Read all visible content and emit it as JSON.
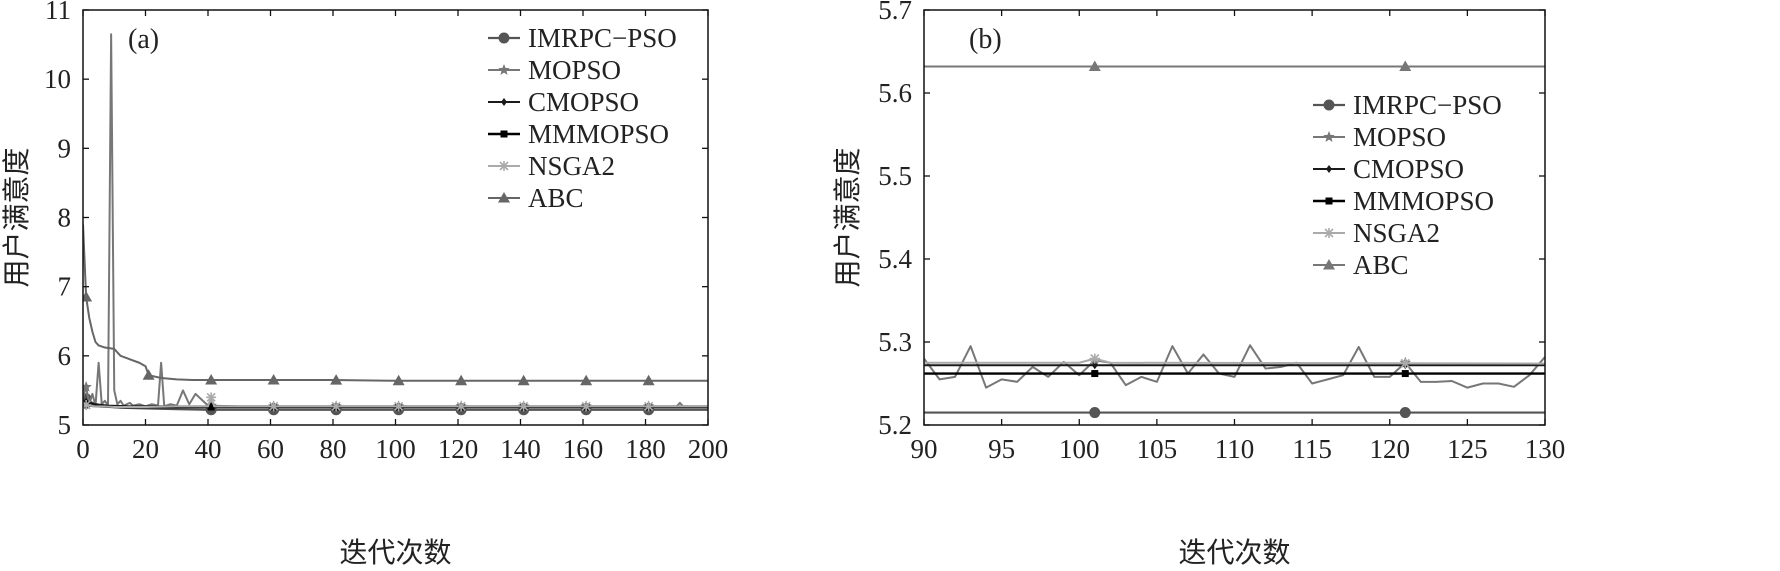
{
  "chart_data": [
    {
      "type": "line",
      "panel_label": "(a)",
      "xlabel": "迭代次数",
      "ylabel": "用户满意度",
      "xlim": [
        0,
        200
      ],
      "ylim": [
        5,
        11
      ],
      "xticks": [
        "0",
        "20",
        "40",
        "60",
        "80",
        "100",
        "120",
        "140",
        "160",
        "180",
        "200"
      ],
      "yticks": [
        "5",
        "6",
        "7",
        "8",
        "9",
        "10",
        "11"
      ],
      "legend_position": "top-right",
      "series": [
        {
          "name": "IMRPC−PSO",
          "color": "#555555",
          "marker": "circle",
          "width": 2.2,
          "x": [
            0,
            1,
            2,
            3,
            5,
            8,
            12,
            20,
            30,
            40,
            60,
            80,
            100,
            120,
            140,
            160,
            180,
            200
          ],
          "y": [
            5.4,
            5.38,
            5.35,
            5.32,
            5.29,
            5.27,
            5.25,
            5.24,
            5.23,
            5.22,
            5.22,
            5.22,
            5.22,
            5.22,
            5.22,
            5.22,
            5.22,
            5.22
          ],
          "marker_x": [
            1,
            41,
            61,
            81,
            101,
            121,
            141,
            161,
            181
          ]
        },
        {
          "name": "MOPSO",
          "color": "#777777",
          "marker": "star",
          "width": 2,
          "x": [
            0,
            1,
            2,
            3,
            4,
            5,
            6,
            7,
            8,
            9,
            10,
            11,
            12,
            13,
            14,
            15,
            16,
            18,
            20,
            22,
            24,
            25,
            26,
            28,
            30,
            32,
            34,
            36,
            40,
            50,
            60,
            80,
            100,
            120,
            140,
            160,
            180,
            190,
            191,
            192,
            200
          ],
          "y": [
            5.4,
            5.55,
            5.3,
            5.45,
            5.28,
            5.9,
            5.3,
            5.35,
            5.28,
            10.65,
            5.5,
            5.3,
            5.35,
            5.28,
            5.3,
            5.32,
            5.28,
            5.3,
            5.27,
            5.3,
            5.28,
            5.9,
            5.27,
            5.3,
            5.28,
            5.5,
            5.3,
            5.45,
            5.28,
            5.27,
            5.27,
            5.27,
            5.27,
            5.27,
            5.27,
            5.27,
            5.27,
            5.27,
            5.32,
            5.27,
            5.27
          ],
          "marker_x": [
            1,
            41,
            61,
            81,
            101,
            121,
            141,
            161,
            181
          ]
        },
        {
          "name": "CMOPSO",
          "color": "#1a1a1a",
          "marker": "diamond",
          "width": 2,
          "x": [
            0,
            2,
            4,
            8,
            15,
            25,
            40,
            60,
            80,
            100,
            120,
            140,
            160,
            180,
            200
          ],
          "y": [
            5.35,
            5.32,
            5.3,
            5.28,
            5.27,
            5.27,
            5.27,
            5.27,
            5.27,
            5.27,
            5.27,
            5.27,
            5.27,
            5.27,
            5.27
          ],
          "marker_x": [
            1,
            41,
            61,
            81,
            101,
            121,
            141,
            161,
            181
          ]
        },
        {
          "name": "MMMOPSO",
          "color": "#000000",
          "marker": "square",
          "width": 2.4,
          "x": [
            0,
            2,
            5,
            10,
            20,
            40,
            60,
            80,
            100,
            120,
            140,
            160,
            180,
            200
          ],
          "y": [
            5.3,
            5.28,
            5.27,
            5.26,
            5.26,
            5.26,
            5.26,
            5.26,
            5.26,
            5.26,
            5.26,
            5.26,
            5.26,
            5.26
          ],
          "marker_x": [
            1,
            41,
            61,
            81,
            101,
            121,
            141,
            161,
            181
          ]
        },
        {
          "name": "NSGA2",
          "color": "#aaaaaa",
          "marker": "asterisk",
          "width": 2,
          "x": [
            0,
            2,
            4,
            6,
            10,
            20,
            30,
            40,
            41,
            42,
            50,
            60,
            80,
            100,
            120,
            140,
            160,
            180,
            200
          ],
          "y": [
            5.3,
            5.28,
            5.27,
            5.27,
            5.26,
            5.26,
            5.27,
            5.27,
            5.4,
            5.27,
            5.27,
            5.27,
            5.27,
            5.27,
            5.27,
            5.27,
            5.27,
            5.27,
            5.27
          ],
          "marker_x": [
            1,
            41,
            61,
            81,
            101,
            121,
            141,
            161,
            181
          ]
        },
        {
          "name": "ABC",
          "color": "#666666",
          "marker": "triangle",
          "width": 2,
          "x": [
            0,
            1,
            2,
            3,
            4,
            5,
            7,
            10,
            12,
            15,
            18,
            20,
            21,
            25,
            30,
            35,
            40,
            60,
            80,
            100,
            120,
            140,
            160,
            180,
            200
          ],
          "y": [
            7.9,
            6.85,
            6.55,
            6.35,
            6.2,
            6.15,
            6.12,
            6.1,
            6.0,
            5.95,
            5.9,
            5.85,
            5.72,
            5.68,
            5.66,
            5.65,
            5.65,
            5.65,
            5.65,
            5.64,
            5.64,
            5.64,
            5.64,
            5.64,
            5.64
          ],
          "marker_x": [
            1,
            21,
            41,
            61,
            81,
            101,
            121,
            141,
            161,
            181
          ]
        }
      ]
    },
    {
      "type": "line",
      "panel_label": "(b)",
      "xlabel": "迭代次数",
      "ylabel": "用户满意度",
      "xlim": [
        90,
        130
      ],
      "ylim": [
        5.2,
        5.7
      ],
      "xticks": [
        "90",
        "95",
        "100",
        "105",
        "110",
        "115",
        "120",
        "125",
        "130"
      ],
      "yticks": [
        "5.2",
        "5.3",
        "5.4",
        "5.5",
        "5.6",
        "5.7"
      ],
      "legend_position": "middle-right",
      "series": [
        {
          "name": "IMRPC−PSO",
          "color": "#555555",
          "marker": "circle",
          "width": 2.2,
          "x": [
            90,
            130
          ],
          "y": [
            5.215,
            5.215
          ],
          "marker_x": [
            101,
            121
          ]
        },
        {
          "name": "MOPSO",
          "color": "#777777",
          "marker": "star",
          "width": 2,
          "x": [
            90,
            91,
            92,
            93,
            94,
            95,
            96,
            97,
            98,
            99,
            100,
            101,
            102,
            103,
            104,
            105,
            106,
            107,
            108,
            109,
            110,
            111,
            112,
            113,
            114,
            115,
            116,
            117,
            118,
            119,
            120,
            121,
            122,
            123,
            124,
            125,
            126,
            127,
            128,
            129,
            130
          ],
          "y": [
            5.28,
            5.255,
            5.258,
            5.295,
            5.245,
            5.255,
            5.252,
            5.27,
            5.258,
            5.276,
            5.26,
            5.278,
            5.275,
            5.248,
            5.258,
            5.252,
            5.295,
            5.262,
            5.285,
            5.262,
            5.258,
            5.296,
            5.268,
            5.27,
            5.275,
            5.25,
            5.255,
            5.26,
            5.294,
            5.258,
            5.258,
            5.275,
            5.252,
            5.252,
            5.253,
            5.245,
            5.25,
            5.25,
            5.246,
            5.26,
            5.282
          ],
          "marker_x": [
            101,
            121
          ]
        },
        {
          "name": "CMOPSO",
          "color": "#1a1a1a",
          "marker": "diamond",
          "width": 2,
          "x": [
            90,
            130
          ],
          "y": [
            5.272,
            5.272
          ],
          "marker_x": [
            101,
            121
          ]
        },
        {
          "name": "MMMOPSO",
          "color": "#000000",
          "marker": "square",
          "width": 2.4,
          "x": [
            90,
            130
          ],
          "y": [
            5.262,
            5.262
          ],
          "marker_x": [
            101,
            121
          ]
        },
        {
          "name": "NSGA2",
          "color": "#aaaaaa",
          "marker": "asterisk",
          "width": 2,
          "x": [
            90,
            100,
            101,
            102,
            130
          ],
          "y": [
            5.275,
            5.275,
            5.28,
            5.275,
            5.274
          ],
          "marker_x": [
            101,
            121
          ]
        },
        {
          "name": "ABC",
          "color": "#777777",
          "marker": "triangle",
          "width": 2,
          "x": [
            90,
            130
          ],
          "y": [
            5.632,
            5.632
          ],
          "marker_x": [
            101,
            121
          ]
        }
      ]
    }
  ]
}
